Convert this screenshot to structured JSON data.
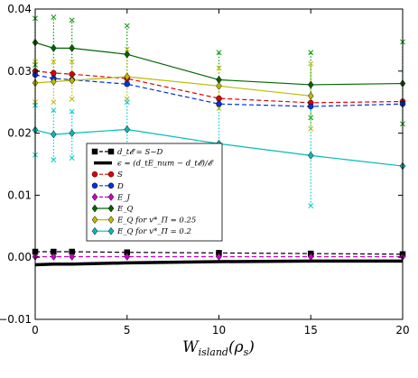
{
  "chart_data": {
    "type": "line",
    "title": "",
    "xlabel": "W_island(ρ_s)",
    "ylabel": "",
    "xlim": [
      0,
      20
    ],
    "ylim": [
      -0.01,
      0.04
    ],
    "xticks": [
      "0",
      "5",
      "10",
      "15",
      "20"
    ],
    "yticks": [
      "−0.01",
      "0.00",
      "0.01",
      "0.02",
      "0.03",
      "0.04"
    ],
    "x": [
      0,
      1,
      2,
      5,
      10,
      15,
      20
    ],
    "grid": false,
    "legend_position": "center-left",
    "series": [
      {
        "name": "d_t𝓔 = S−D",
        "color": "#000000",
        "style": "dashed",
        "marker": "square",
        "values": [
          0.0009,
          0.0009,
          0.0009,
          0.0008,
          0.0007,
          0.0006,
          0.0005
        ]
      },
      {
        "name": "ϵ = (d_tE_num − d_t𝓔)/𝓔",
        "color": "#000000",
        "style": "solid-thick",
        "marker": "none",
        "values": [
          -0.0012,
          -0.0011,
          -0.0011,
          -0.0009,
          -0.0007,
          -0.0006,
          -0.0006
        ]
      },
      {
        "name": "S",
        "color": "#dd0000",
        "style": "dashed",
        "marker": "circle",
        "values": [
          0.03,
          0.0297,
          0.0295,
          0.0288,
          0.0256,
          0.0249,
          0.0251
        ]
      },
      {
        "name": "D",
        "color": "#0033dd",
        "style": "dashed",
        "marker": "circle",
        "values": [
          0.0294,
          0.0288,
          0.0286,
          0.0279,
          0.0247,
          0.0243,
          0.0247
        ]
      },
      {
        "name": "E_J",
        "color": "#cc00cc",
        "style": "dashed",
        "marker": "diamond",
        "values": [
          0.0001,
          0.0001,
          0.0001,
          0.0001,
          0.0001,
          0.0001,
          0.0001
        ]
      },
      {
        "name": "E_Q",
        "color": "#006600",
        "style": "solid",
        "marker": "diamond",
        "values": [
          0.0346,
          0.0337,
          0.0337,
          0.0327,
          0.0286,
          0.0278,
          0.028
        ]
      },
      {
        "name": "E_Q for v*_Π = 0.25",
        "color": "#bbbb00",
        "style": "solid",
        "marker": "diamond",
        "values": [
          0.0281,
          0.0283,
          0.0285,
          0.0291,
          0.0276,
          0.026,
          null
        ]
      },
      {
        "name": "E_Q for v*_Π = 0.2",
        "color": "#00bbbb",
        "style": "solid",
        "marker": "diamond",
        "values": [
          0.0205,
          0.0198,
          0.02,
          0.0206,
          0.0183,
          0.0164,
          0.0147
        ]
      }
    ],
    "errorbars": [
      {
        "color": "#009900",
        "x": [
          0,
          1,
          2,
          5,
          10,
          15,
          20
        ],
        "low": [
          0.031,
          0.029,
          0.029,
          0.028,
          0.025,
          0.0225,
          0.0215
        ],
        "high": [
          0.0385,
          0.0387,
          0.0382,
          0.0373,
          0.033,
          0.033,
          0.0347
        ]
      },
      {
        "color": "#bbbb00",
        "x": [
          0,
          1,
          2,
          5,
          10,
          15
        ],
        "low": [
          0.025,
          0.025,
          0.0255,
          0.0255,
          0.024,
          0.0207
        ],
        "high": [
          0.0315,
          0.0315,
          0.0315,
          0.0335,
          0.0305,
          0.0312
        ]
      },
      {
        "color": "#00cccc",
        "x": [
          0,
          1,
          2,
          5,
          10,
          15
        ],
        "low": [
          0.0165,
          0.0157,
          0.016,
          0.016,
          0.0115,
          0.0083
        ],
        "high": [
          0.0245,
          0.0237,
          0.0235,
          0.025,
          0.025,
          0.0245
        ]
      }
    ]
  }
}
